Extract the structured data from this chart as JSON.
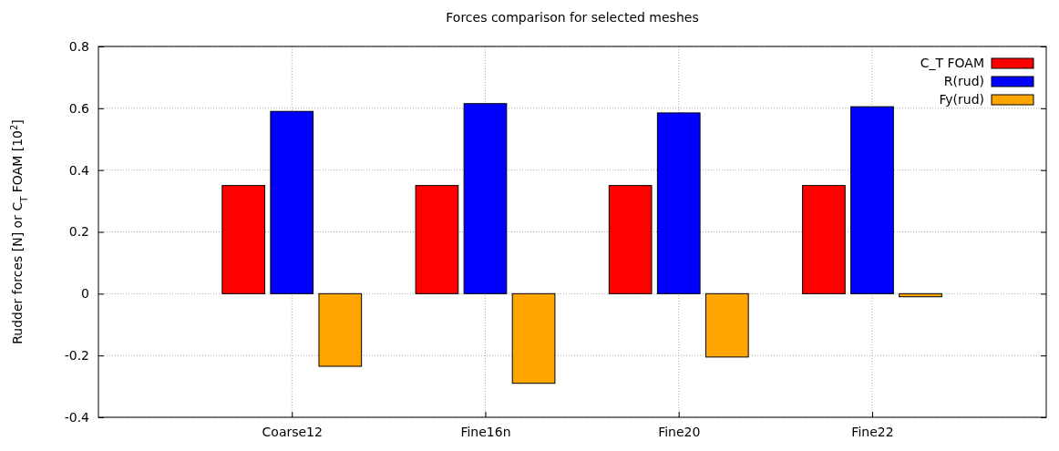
{
  "chart_data": {
    "type": "bar",
    "title": "Forces comparison for selected meshes",
    "ylabel": "Rudder forces [N] or C$_{T}$ FOAM [10$^{2}$]",
    "categories": [
      "Coarse12",
      "Fine16n",
      "Fine20",
      "Fine22"
    ],
    "series": [
      {
        "name": "C_T FOAM",
        "color": "#ff0000",
        "values": [
          0.35,
          0.35,
          0.35,
          0.35
        ]
      },
      {
        "name": "R(rud)",
        "color": "#0000ff",
        "values": [
          0.59,
          0.615,
          0.585,
          0.605
        ]
      },
      {
        "name": "Fy(rud)",
        "color": "#ffa500",
        "values": [
          -0.235,
          -0.29,
          -0.205,
          -0.01
        ]
      }
    ],
    "ylim": [
      -0.4,
      0.8
    ],
    "yticks": [
      -0.4,
      -0.2,
      0,
      0.2,
      0.4,
      0.6,
      0.8
    ],
    "grid": true,
    "legend": "top right"
  }
}
